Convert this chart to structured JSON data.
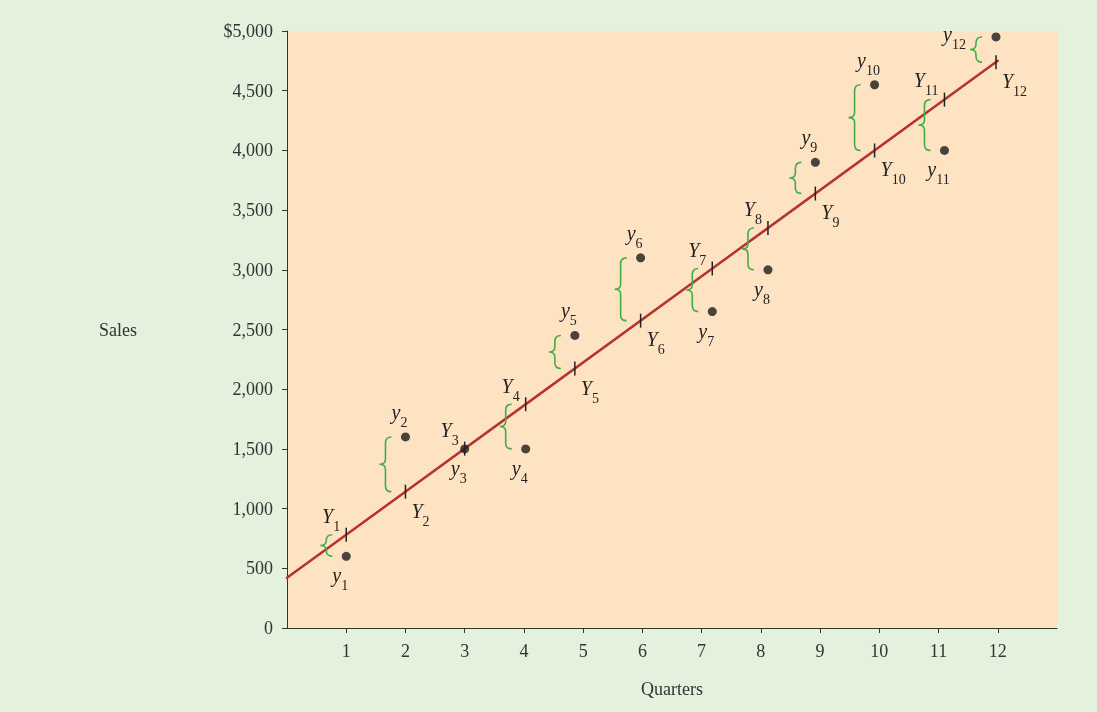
{
  "chart_data": {
    "type": "scatter",
    "xlabel": "Quarters",
    "ylabel": "Sales",
    "xlim": [
      0,
      13
    ],
    "xticks": [
      1,
      2,
      3,
      4,
      5,
      6,
      7,
      8,
      9,
      10,
      11,
      12
    ],
    "ylim": [
      0,
      5000
    ],
    "yticks": [
      0,
      500,
      {
        "value": 1000,
        "label": "1,000"
      },
      {
        "value": 1500,
        "label": "1,500"
      },
      {
        "value": 2000,
        "label": "2,000"
      },
      {
        "value": 2500,
        "label": "2,500"
      },
      {
        "value": 3000,
        "label": "3,000"
      },
      {
        "value": 3500,
        "label": "3,500"
      },
      {
        "value": 4000,
        "label": "4,000"
      },
      {
        "value": 4500,
        "label": "4,500"
      },
      {
        "value": 5000,
        "label": "$5,000"
      }
    ],
    "grid": false,
    "series": [
      {
        "color": "#1a1a1a",
        "marker": "circle",
        "x": [
          1,
          2,
          3,
          4.03,
          4.86,
          5.97,
          7.18,
          8.12,
          8.92,
          9.92,
          11.1,
          11.97
        ],
        "values": [
          600,
          1600,
          1500,
          1500,
          2450,
          3100,
          2650,
          3000,
          3900,
          4550,
          4000,
          4950
        ]
      },
      {
        "type": "line",
        "color": "#b5332e",
        "marker": "none",
        "line_style": "solid",
        "x": [
          0,
          12
        ],
        "values": [
          420,
          4750
        ]
      }
    ],
    "annotations": [
      {
        "text": "y$_{1}$",
        "x": 1,
        "y": 600
      },
      {
        "text": "y$_{2}$",
        "x": 2,
        "y": 1600
      },
      {
        "text": "y$_{3}$",
        "x": 3,
        "y": 1500
      },
      {
        "text": "y$_{4}$",
        "x": 4.03,
        "y": 1500
      },
      {
        "text": "y$_{5}$",
        "x": 4.86,
        "y": 2450
      },
      {
        "text": "y$_{6}$",
        "x": 5.97,
        "y": 3100
      },
      {
        "text": "y$_{7}$",
        "x": 7.18,
        "y": 2650
      },
      {
        "text": "y$_{8}$",
        "x": 8.12,
        "y": 3000
      },
      {
        "text": "y$_{9}$",
        "x": 8.92,
        "y": 3900
      },
      {
        "text": "y$_{10}$",
        "x": 9.92,
        "y": 4550
      },
      {
        "text": "y$_{11}$",
        "x": 11.1,
        "y": 4000
      },
      {
        "text": "y$_{12}$",
        "x": 11.97,
        "y": 4950
      },
      {
        "text": "Y$_{1}$",
        "x": 1,
        "y": 780
      },
      {
        "text": "Y$_{2}$",
        "x": 2,
        "y": 1140
      },
      {
        "text": "Y$_{3}$",
        "x": 3,
        "y": 1500
      },
      {
        "text": "Y$_{4}$",
        "x": 4.03,
        "y": 1870
      },
      {
        "text": "Y$_{5}$",
        "x": 4.86,
        "y": 2170
      },
      {
        "text": "Y$_{6}$",
        "x": 5.97,
        "y": 2580
      },
      {
        "text": "Y$_{7}$",
        "x": 7.18,
        "y": 3010
      },
      {
        "text": "Y$_{8}$",
        "x": 8.12,
        "y": 3350
      },
      {
        "text": "Y$_{9}$",
        "x": 8.92,
        "y": 3640
      },
      {
        "text": "Y$_{10}$",
        "x": 9.92,
        "y": 4000
      },
      {
        "text": "Y$_{11}$",
        "x": 11.1,
        "y": 4430
      },
      {
        "text": "Y$_{12}$",
        "x": 11.97,
        "y": 4740
      }
    ]
  }
}
